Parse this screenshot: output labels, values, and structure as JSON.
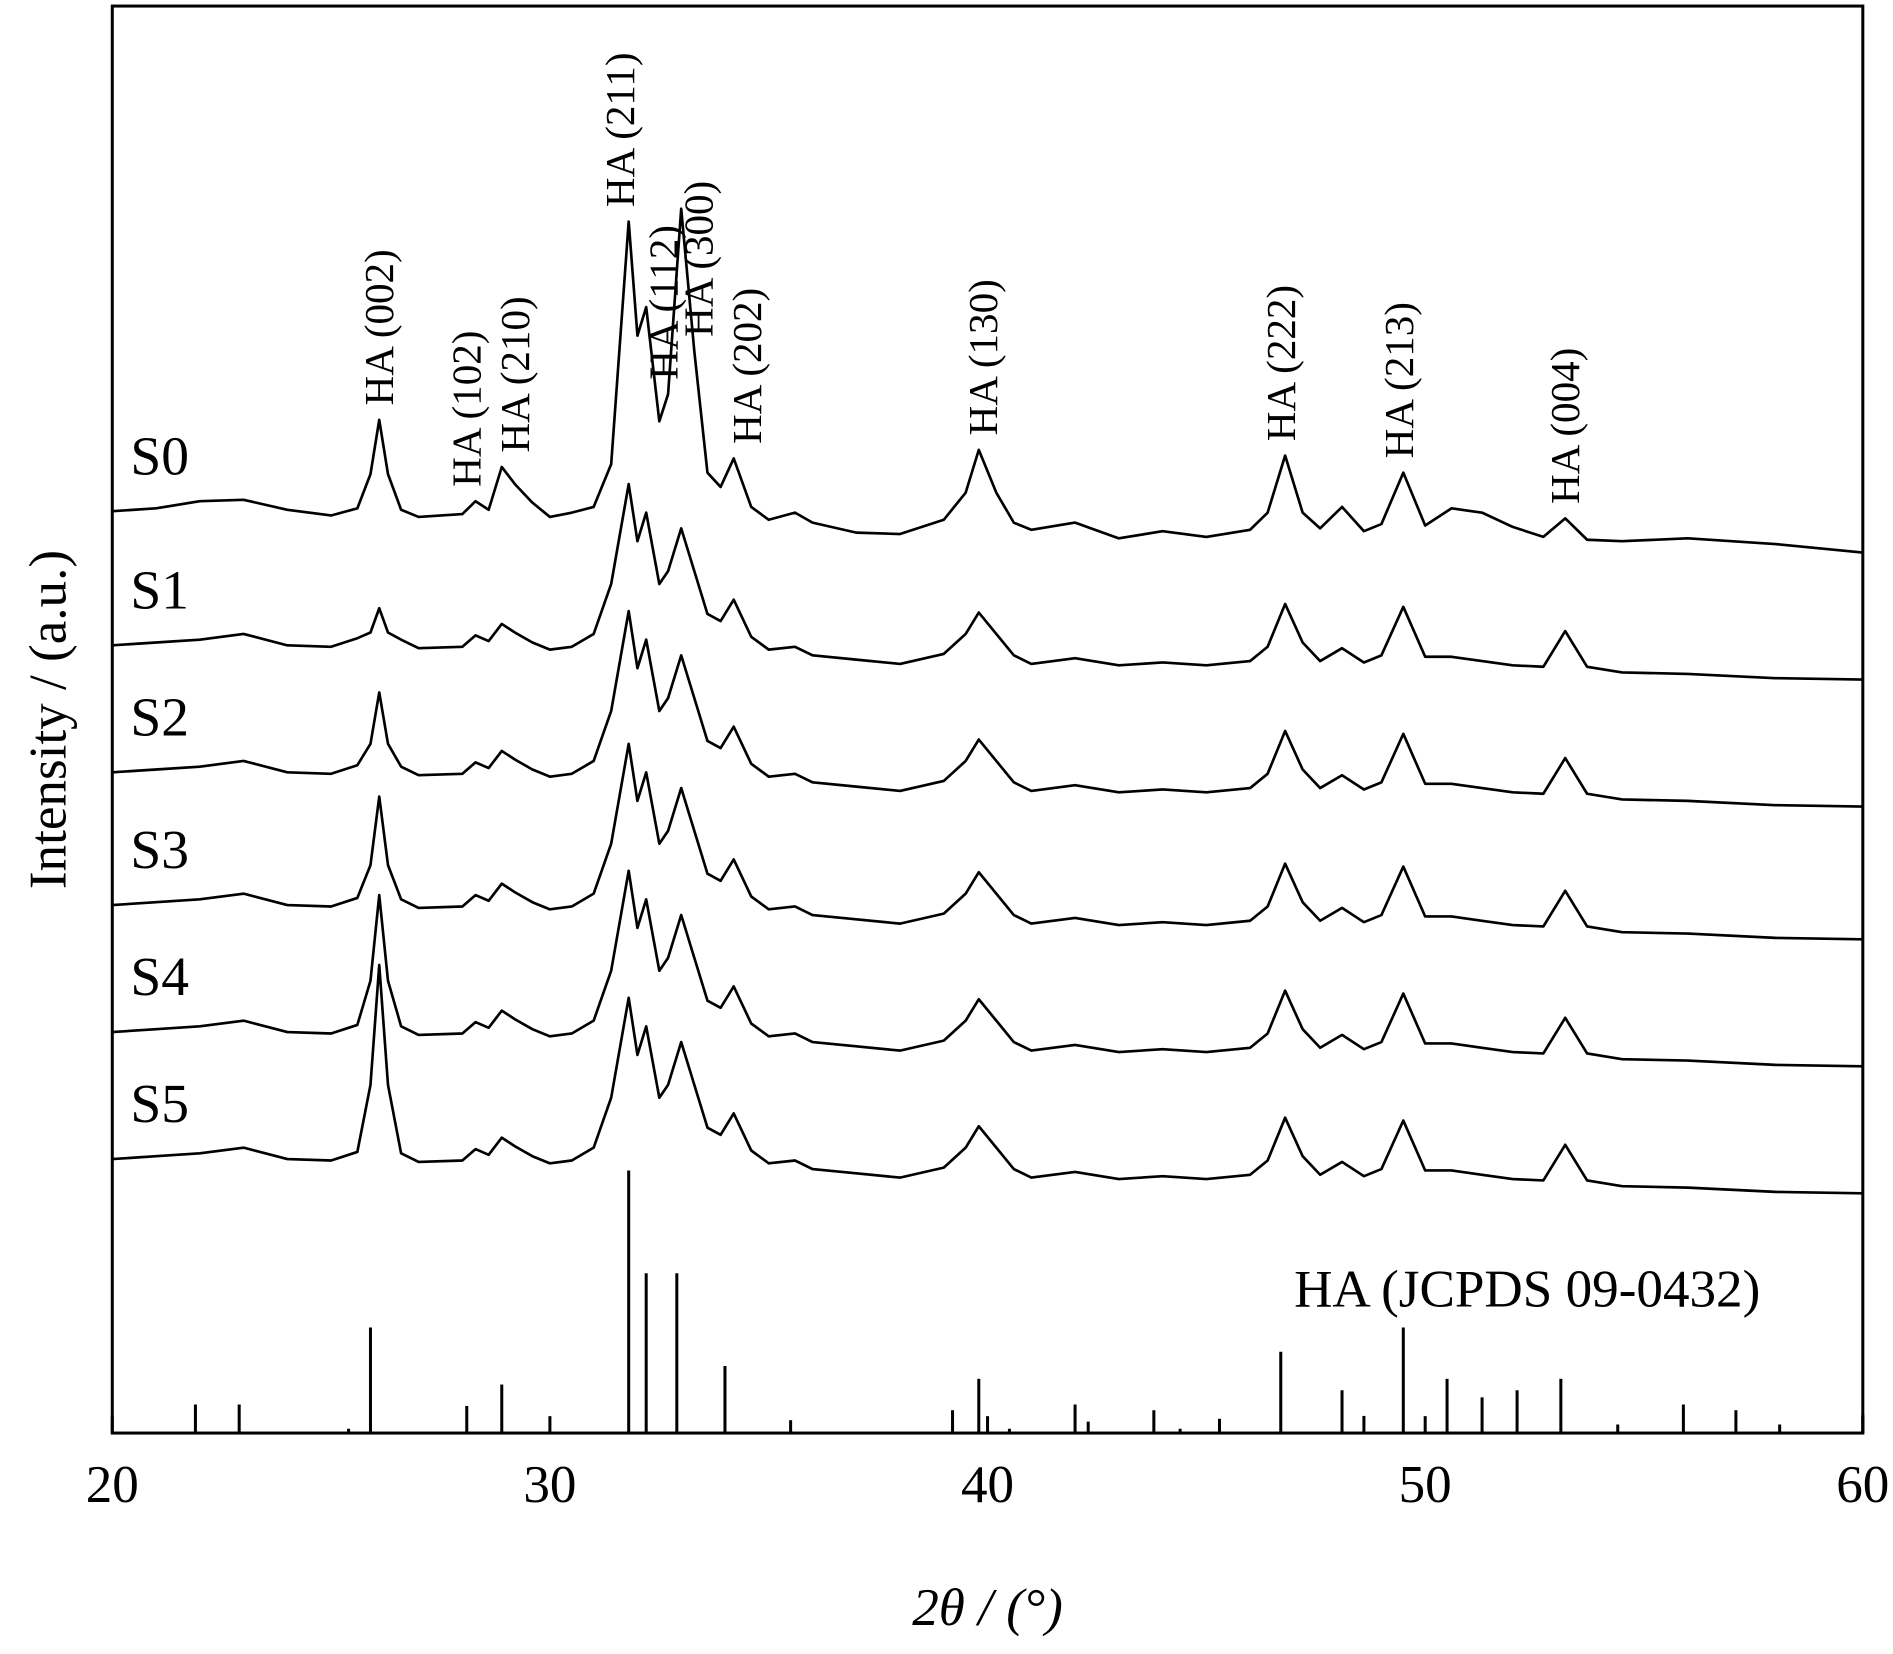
{
  "chart_data": {
    "type": "line",
    "x_label": "2θ / (°)",
    "y_label": "Intensity / (a.u.)",
    "xlim": [
      20,
      60
    ],
    "ylim": [
      0,
      100
    ],
    "xticks": [
      20,
      30,
      40,
      50,
      60
    ],
    "x": [
      20,
      21,
      22,
      23,
      24,
      25,
      25.6,
      25.9,
      26.1,
      26.3,
      26.6,
      27,
      28,
      28.3,
      28.6,
      28.9,
      29.2,
      29.6,
      30,
      30.5,
      31,
      31.4,
      31.8,
      32,
      32.2,
      32.5,
      32.7,
      33,
      33.3,
      33.6,
      33.9,
      34.2,
      34.6,
      35,
      35.6,
      36,
      37,
      38,
      39,
      39.5,
      39.8,
      40.2,
      40.6,
      41,
      42,
      43,
      44,
      45,
      46,
      46.4,
      46.8,
      47.2,
      47.6,
      48.1,
      48.6,
      49,
      49.5,
      50,
      50.6,
      51.3,
      52,
      52.7,
      53.2,
      53.7,
      54.5,
      56,
      58,
      60
    ],
    "series": [
      {
        "name": "S0",
        "color": "#000000",
        "values": [
          64.6,
          64.8,
          65.3,
          65.4,
          64.7,
          64.3,
          64.8,
          67.2,
          71.0,
          67.2,
          64.7,
          64.2,
          64.4,
          65.3,
          64.7,
          67.7,
          66.5,
          65.2,
          64.2,
          64.5,
          64.9,
          67.9,
          84.9,
          76.9,
          78.9,
          70.9,
          72.8,
          85.8,
          75.8,
          67.3,
          66.3,
          68.3,
          64.9,
          64.0,
          64.5,
          63.8,
          63.1,
          63.0,
          64.0,
          65.9,
          68.9,
          65.9,
          63.8,
          63.3,
          63.8,
          62.7,
          63.2,
          62.8,
          63.3,
          64.5,
          68.5,
          64.5,
          63.4,
          64.9,
          63.2,
          63.7,
          67.3,
          63.6,
          64.8,
          64.5,
          63.5,
          62.8,
          64.1,
          62.6,
          62.5,
          62.7,
          62.3,
          61.7
        ]
      },
      {
        "name": "S1",
        "color": "#000000",
        "values": [
          55.2,
          55.4,
          55.6,
          56.0,
          55.2,
          55.1,
          55.7,
          56.1,
          57.8,
          56.1,
          55.6,
          55.0,
          55.1,
          55.9,
          55.5,
          56.7,
          56.1,
          55.4,
          54.9,
          55.1,
          56.0,
          59.5,
          66.5,
          62.5,
          64.5,
          59.5,
          60.4,
          63.4,
          60.4,
          57.4,
          56.9,
          58.4,
          55.8,
          54.9,
          55.1,
          54.5,
          54.2,
          53.9,
          54.6,
          56.0,
          57.5,
          56.0,
          54.5,
          53.9,
          54.3,
          53.8,
          54.0,
          53.8,
          54.1,
          55.1,
          58.1,
          55.4,
          54.1,
          55.0,
          54.0,
          54.5,
          57.9,
          54.4,
          54.4,
          54.1,
          53.8,
          53.7,
          56.2,
          53.7,
          53.3,
          53.2,
          52.9,
          52.8
        ]
      },
      {
        "name": "S2",
        "color": "#000000",
        "values": [
          46.3,
          46.5,
          46.7,
          47.1,
          46.3,
          46.2,
          46.8,
          48.3,
          51.9,
          48.3,
          46.7,
          46.1,
          46.2,
          47.0,
          46.6,
          47.8,
          47.2,
          46.5,
          46.0,
          46.2,
          47.1,
          50.6,
          57.6,
          53.6,
          55.6,
          50.6,
          51.5,
          54.5,
          51.5,
          48.5,
          48.0,
          49.5,
          46.9,
          46.0,
          46.2,
          45.6,
          45.3,
          45.0,
          45.7,
          47.1,
          48.6,
          47.1,
          45.6,
          45.0,
          45.4,
          44.9,
          45.1,
          44.9,
          45.2,
          46.2,
          49.2,
          46.5,
          45.2,
          46.1,
          45.1,
          45.6,
          49.0,
          45.5,
          45.5,
          45.2,
          44.9,
          44.8,
          47.3,
          44.8,
          44.4,
          44.3,
          44.0,
          43.9
        ]
      },
      {
        "name": "S3",
        "color": "#000000",
        "values": [
          37.0,
          37.2,
          37.4,
          37.8,
          37.0,
          36.9,
          37.5,
          39.8,
          44.6,
          39.8,
          37.4,
          36.8,
          36.9,
          37.7,
          37.3,
          38.5,
          37.9,
          37.2,
          36.7,
          36.9,
          37.8,
          41.3,
          48.3,
          44.3,
          46.3,
          41.3,
          42.2,
          45.2,
          42.2,
          39.2,
          38.7,
          40.2,
          37.6,
          36.7,
          36.9,
          36.3,
          36.0,
          35.7,
          36.4,
          37.8,
          39.3,
          37.8,
          36.3,
          35.7,
          36.1,
          35.6,
          35.8,
          35.6,
          35.9,
          36.9,
          39.9,
          37.2,
          35.9,
          36.8,
          35.8,
          36.3,
          39.7,
          36.2,
          36.2,
          35.9,
          35.6,
          35.5,
          38.0,
          35.5,
          35.1,
          35.0,
          34.7,
          34.6
        ]
      },
      {
        "name": "S4",
        "color": "#000000",
        "values": [
          28.1,
          28.3,
          28.5,
          28.9,
          28.1,
          28.0,
          28.6,
          31.7,
          37.7,
          31.7,
          28.5,
          27.9,
          28.0,
          28.8,
          28.4,
          29.6,
          29.0,
          28.3,
          27.8,
          28.0,
          28.9,
          32.4,
          39.4,
          35.4,
          37.4,
          32.4,
          33.3,
          36.3,
          33.3,
          30.3,
          29.8,
          31.3,
          28.7,
          27.8,
          28.0,
          27.4,
          27.1,
          26.8,
          27.5,
          28.9,
          30.4,
          28.9,
          27.4,
          26.8,
          27.2,
          26.7,
          26.9,
          26.7,
          27.0,
          28.0,
          31.0,
          28.3,
          27.0,
          27.9,
          26.9,
          27.4,
          30.8,
          27.3,
          27.3,
          27.0,
          26.7,
          26.6,
          29.1,
          26.6,
          26.2,
          26.1,
          25.8,
          25.7
        ]
      },
      {
        "name": "S5",
        "color": "#000000",
        "values": [
          19.2,
          19.4,
          19.6,
          20.0,
          19.2,
          19.1,
          19.7,
          24.4,
          32.8,
          24.4,
          19.6,
          19.0,
          19.1,
          19.9,
          19.5,
          20.7,
          20.1,
          19.4,
          18.9,
          19.1,
          20.0,
          23.5,
          30.5,
          26.5,
          28.5,
          23.5,
          24.4,
          27.4,
          24.4,
          21.4,
          20.9,
          22.4,
          19.8,
          18.9,
          19.1,
          18.5,
          18.2,
          17.9,
          18.6,
          20.0,
          21.5,
          20.0,
          18.5,
          17.9,
          18.3,
          17.8,
          18.0,
          17.8,
          18.1,
          19.1,
          22.1,
          19.4,
          18.1,
          19.0,
          18.0,
          18.5,
          21.9,
          18.4,
          18.4,
          18.1,
          17.8,
          17.7,
          20.2,
          17.7,
          17.3,
          17.2,
          16.9,
          16.8
        ]
      }
    ],
    "reference": {
      "name": "HA (JCPDS 09-0432)",
      "color": "#000000",
      "x": [
        21.9,
        22.9,
        25.4,
        25.9,
        28.1,
        28.9,
        31.8,
        32.2,
        32.9,
        34.0,
        35.5,
        39.2,
        39.8,
        40.5,
        42.0,
        42.3,
        43.8,
        44.4,
        45.3,
        46.7,
        48.1,
        48.6,
        49.5,
        50.5,
        51.3,
        52.1,
        53.1,
        54.4,
        55.9,
        57.1,
        58.1,
        60.0
      ],
      "values": [
        2.0,
        2.0,
        0.3,
        7.4,
        1.9,
        3.4,
        18.4,
        11.2,
        11.2,
        4.7,
        0.9,
        1.6,
        3.8,
        0.3,
        2.0,
        0.8,
        1.6,
        0.3,
        1.0,
        5.7,
        3.0,
        1.2,
        7.4,
        3.8,
        2.5,
        3.0,
        3.8,
        0.6,
        2.0,
        1.6,
        0.6,
        1.3
      ]
    },
    "annotations": [
      {
        "text": "HA (002)",
        "x": 26.1
      },
      {
        "text": "HA (102)",
        "x": 28.1
      },
      {
        "text": "HA (210)",
        "x": 29.2
      },
      {
        "text": "HA (211)",
        "x": 31.6
      },
      {
        "text": "HA (112)",
        "x": 32.6
      },
      {
        "text": "HA (300)",
        "x": 33.4
      },
      {
        "text": "HA (202)",
        "x": 34.5
      },
      {
        "text": "HA (130)",
        "x": 39.9
      },
      {
        "text": "HA (222)",
        "x": 46.7
      },
      {
        "text": "HA (213)",
        "x": 49.4
      },
      {
        "text": "HA (004)",
        "x": 53.2
      }
    ]
  }
}
